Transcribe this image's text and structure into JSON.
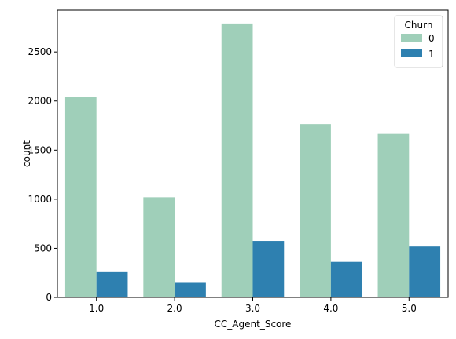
{
  "chart_data": {
    "type": "bar",
    "title": "",
    "xlabel": "CC_Agent_Score",
    "ylabel": "count",
    "categories": [
      "1.0",
      "2.0",
      "3.0",
      "4.0",
      "5.0"
    ],
    "series": [
      {
        "name": "0",
        "color": "#9fcfb9",
        "values": [
          2040,
          1020,
          2790,
          1765,
          1665
        ]
      },
      {
        "name": "1",
        "color": "#2e80b0",
        "values": [
          265,
          148,
          575,
          362,
          518
        ]
      }
    ],
    "ylim": [
      0,
      2925
    ],
    "yticks": [
      0,
      500,
      1000,
      1500,
      2000,
      2500
    ],
    "legend": {
      "title": "Churn",
      "placement": "top-right"
    },
    "grid": false
  }
}
